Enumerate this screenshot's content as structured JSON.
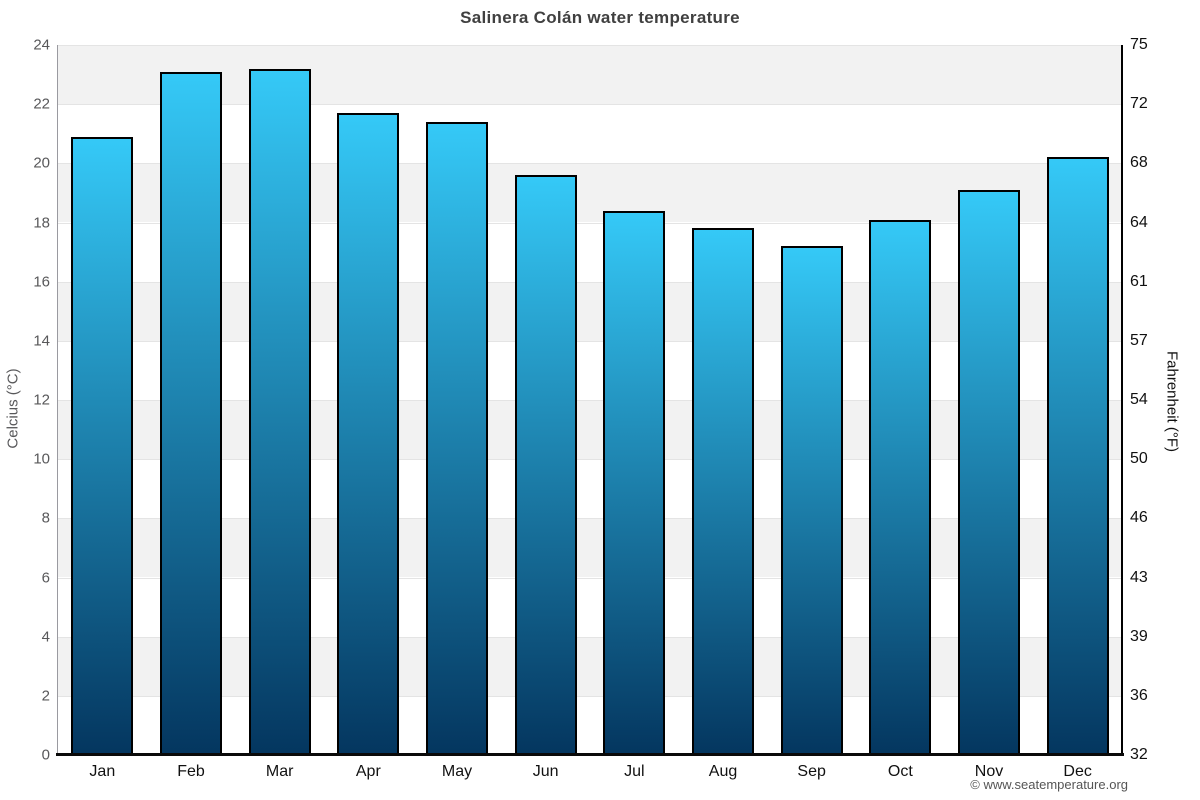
{
  "title": "Salinera Colán water temperature",
  "footer": "© www.seatemperature.org",
  "chart_data": {
    "type": "bar",
    "title": "Salinera Colán water temperature",
    "series_name": "Water temperature (°C)",
    "categories": [
      "Jan",
      "Feb",
      "Mar",
      "Apr",
      "May",
      "Jun",
      "Jul",
      "Aug",
      "Sep",
      "Oct",
      "Nov",
      "Dec"
    ],
    "values": [
      20.9,
      23.1,
      23.2,
      21.7,
      21.4,
      19.6,
      18.4,
      17.8,
      17.2,
      18.1,
      19.1,
      20.2
    ],
    "xlabel": "",
    "ylabel_left": "Celcius (°C)",
    "ylabel_right": "Fahrenheit (°F)",
    "ylim_left": [
      0,
      24
    ],
    "yticks_left": [
      0,
      2,
      4,
      6,
      8,
      10,
      12,
      14,
      16,
      18,
      20,
      22,
      24
    ],
    "yticks_right_labels": [
      "32",
      "36",
      "39",
      "43",
      "46",
      "50",
      "54",
      "57",
      "61",
      "64",
      "68",
      "72",
      "75"
    ],
    "grid": "horizontal alternating bands every 2°C",
    "legend": "none",
    "colors": {
      "bar_gradient_top": "#35c9f7",
      "bar_gradient_bottom": "#04365f",
      "bar_border": "#000000",
      "band_gray": "#f2f2f2",
      "band_white": "#ffffff",
      "grid_line": "#e4e4e4",
      "title": "#404040",
      "left_ticks": "#58585a",
      "right_ticks": "#111111",
      "month_labels": "#111111",
      "footer": "#555555"
    }
  }
}
